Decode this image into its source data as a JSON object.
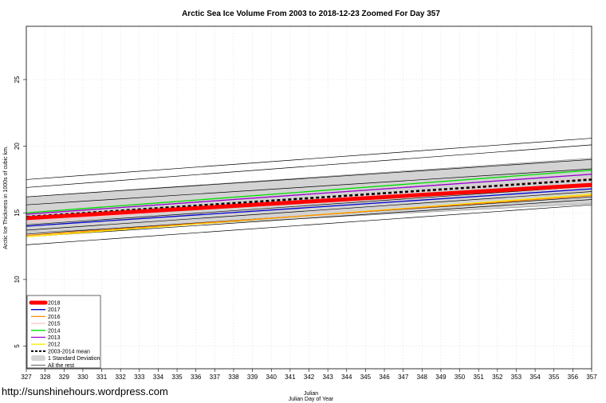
{
  "footer": {
    "url": "http://sunshinehours.wordpress.com"
  },
  "chart_data": {
    "type": "line",
    "title": "Arctic Sea Ice Volume From 2003 to 2018-12-23 Zoomed For Day 357",
    "xlabel": "Julian",
    "xlabel2": "Julian Day of Year",
    "ylabel": "Arctic Ice Thickness in 1000s of cubic km.",
    "xlim": [
      327,
      357
    ],
    "ylim": [
      3.3,
      29
    ],
    "x_ticks": [
      327,
      328,
      329,
      330,
      331,
      332,
      333,
      334,
      335,
      336,
      337,
      338,
      339,
      340,
      341,
      342,
      343,
      344,
      345,
      346,
      347,
      348,
      349,
      350,
      351,
      352,
      353,
      354,
      355,
      356,
      357
    ],
    "y_ticks": [
      5,
      10,
      15,
      20,
      25
    ],
    "grid": true,
    "legend_position": "bottom-left",
    "std_band": {
      "name": "1 Standard Deviation",
      "color": "#d3d3d3",
      "lower": [
        13.5,
        15.7
      ],
      "upper": [
        16.2,
        19.1
      ],
      "x": [
        327,
        357
      ]
    },
    "mean": {
      "name": "2003-2014 mean",
      "color": "#000000",
      "x": [
        327,
        357
      ],
      "values": [
        14.7,
        17.5
      ]
    },
    "series": [
      {
        "name": "2018",
        "color": "#ff0000",
        "x": [
          327,
          357
        ],
        "values": [
          14.6,
          17.1
        ]
      },
      {
        "name": "2017",
        "color": "#0000cc",
        "x": [
          327,
          357
        ],
        "values": [
          14.0,
          16.8
        ]
      },
      {
        "name": "2016",
        "color": "#ff8c00",
        "x": [
          327,
          357
        ],
        "values": [
          13.3,
          16.3
        ]
      },
      {
        "name": "2015",
        "color": "#ffc0cb",
        "x": [
          327,
          357
        ],
        "values": [
          14.3,
          17.6
        ]
      },
      {
        "name": "2014",
        "color": "#00dd00",
        "x": [
          327,
          357
        ],
        "values": [
          15.0,
          18.2
        ]
      },
      {
        "name": "2013",
        "color": "#9900cc",
        "x": [
          327,
          357
        ],
        "values": [
          14.9,
          17.9
        ]
      },
      {
        "name": "2012",
        "color": "#ffee00",
        "x": [
          327,
          357
        ],
        "values": [
          13.2,
          16.4
        ]
      },
      {
        "name": "All the rest",
        "color": "#000000",
        "x": [
          327,
          357
        ],
        "values": [
          12.6,
          15.6
        ]
      }
    ],
    "other_years": [
      {
        "x": [
          327,
          357
        ],
        "values": [
          17.5,
          20.6
        ]
      },
      {
        "x": [
          327,
          357
        ],
        "values": [
          16.9,
          20.1
        ]
      },
      {
        "x": [
          327,
          357
        ],
        "values": [
          16.2,
          19.0
        ]
      },
      {
        "x": [
          327,
          357
        ],
        "values": [
          15.6,
          18.3
        ]
      },
      {
        "x": [
          327,
          357
        ],
        "values": [
          14.9,
          17.9
        ]
      },
      {
        "x": [
          327,
          357
        ],
        "values": [
          14.1,
          17.0
        ]
      },
      {
        "x": [
          327,
          357
        ],
        "values": [
          13.7,
          16.6
        ]
      },
      {
        "x": [
          327,
          357
        ],
        "values": [
          13.4,
          16.2
        ]
      },
      {
        "x": [
          327,
          357
        ],
        "values": [
          13.2,
          16.0
        ]
      }
    ]
  }
}
